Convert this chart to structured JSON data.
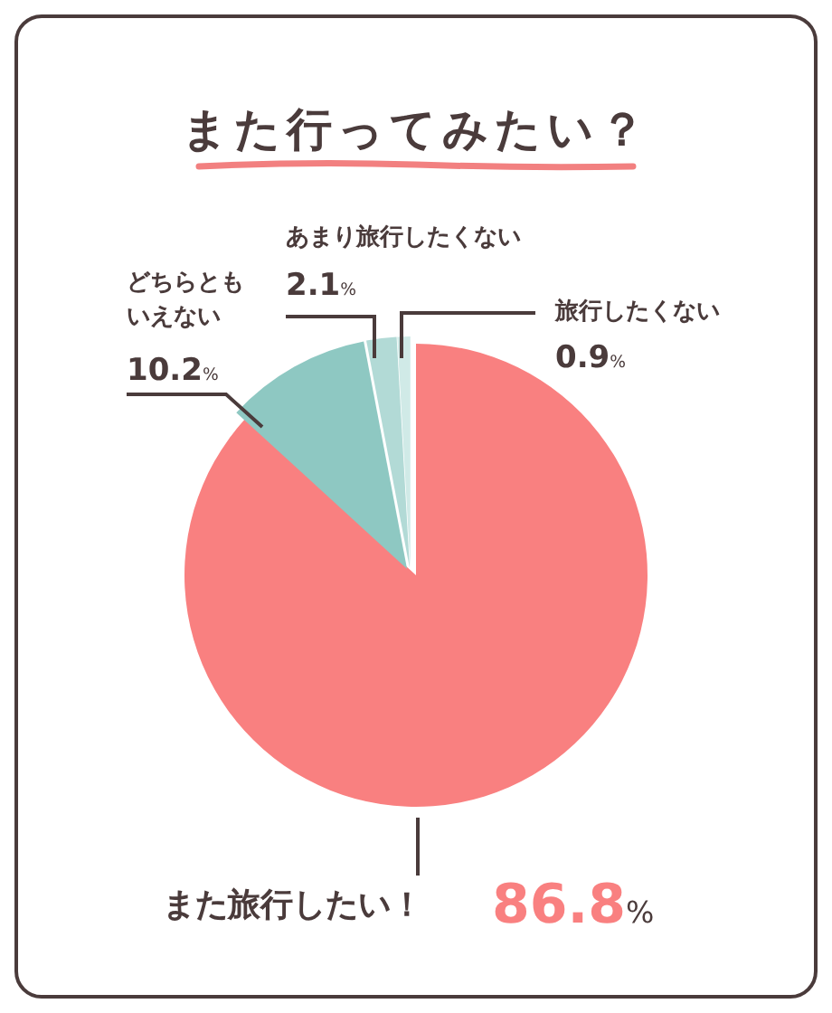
{
  "chart_data": {
    "type": "pie",
    "title": "また行ってみたい？",
    "categories": [
      "また旅行したい！",
      "どちらともいえない",
      "あまり旅行したくない",
      "旅行したくない"
    ],
    "values": [
      86.8,
      10.2,
      2.1,
      0.9
    ],
    "colors": [
      "#f98080",
      "#8ec8c2",
      "#b2dad6",
      "#d0eae7"
    ],
    "value_labels": [
      "86.8%",
      "10.2%",
      "2.1%",
      "0.9%"
    ]
  }
}
